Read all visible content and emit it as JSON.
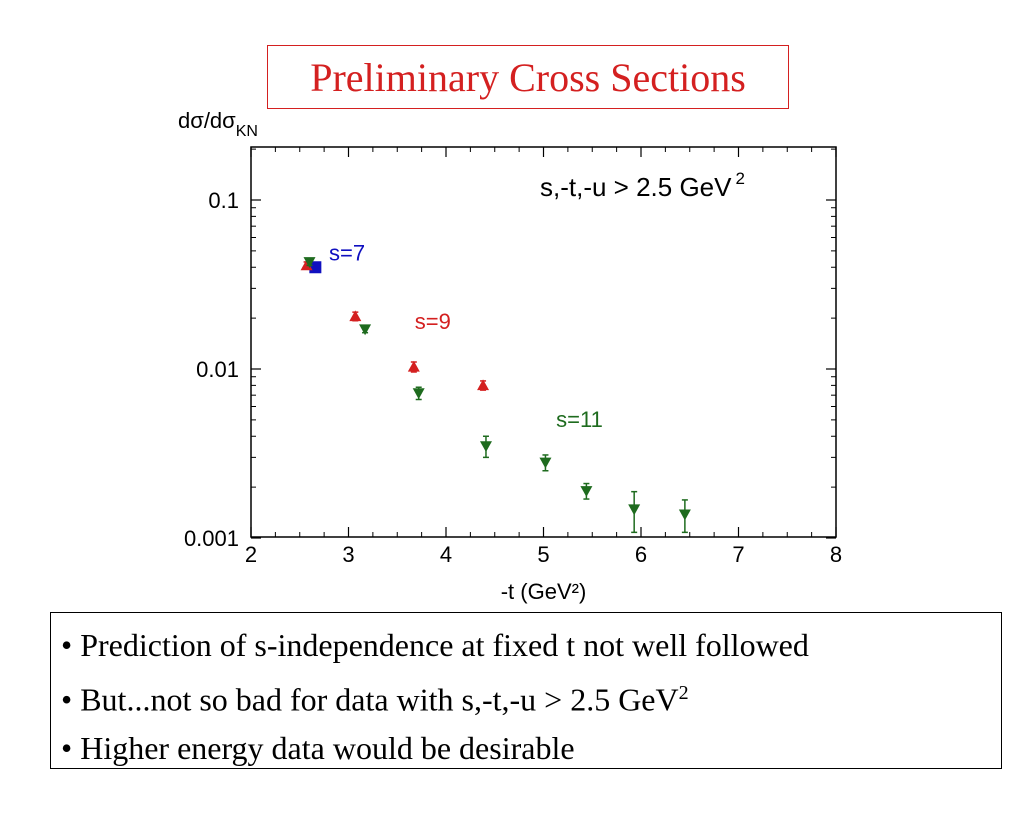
{
  "slide": {
    "title": "Preliminary Cross Sections",
    "title_color": "#d42020"
  },
  "chart_data": {
    "type": "scatter",
    "title": "Preliminary Cross Sections",
    "xlabel": "-t (GeV²)",
    "ylabel": "dσ/dσ_KN",
    "ylabel_main": "dσ/dσ",
    "ylabel_sub": "KN",
    "xlim": [
      2,
      8
    ],
    "ylim": [
      0.001,
      0.2
    ],
    "yscale": "log",
    "xticks": [
      2,
      3,
      4,
      5,
      6,
      7,
      8
    ],
    "xtick_labels": [
      "2",
      "3",
      "4",
      "5",
      "6",
      "7",
      "8"
    ],
    "yticks": [
      0.001,
      0.01,
      0.1
    ],
    "ytick_labels": [
      "0.001",
      "0.01",
      "0.1"
    ],
    "grid": false,
    "annotation": "s,-t,-u > 2.5 GeV",
    "annotation_sup": "2",
    "series": [
      {
        "name": "s=7",
        "color": "#1010c0",
        "marker": "square",
        "points": [
          {
            "x": 2.66,
            "y": 0.04,
            "err": 0.0015
          }
        ]
      },
      {
        "name": "s=9",
        "color": "#d42020",
        "marker": "triangle-up",
        "points": [
          {
            "x": 2.57,
            "y": 0.041,
            "err": 0.002
          },
          {
            "x": 3.07,
            "y": 0.0205,
            "err": 0.0012
          },
          {
            "x": 3.67,
            "y": 0.0103,
            "err": 0.0007
          },
          {
            "x": 4.38,
            "y": 0.008,
            "err": 0.0005
          }
        ]
      },
      {
        "name": "s=11",
        "color": "#1e6b1e",
        "marker": "triangle-down",
        "points": [
          {
            "x": 2.6,
            "y": 0.043,
            "err": 0.002
          },
          {
            "x": 3.17,
            "y": 0.0172,
            "err": 0.0008
          },
          {
            "x": 3.72,
            "y": 0.0072,
            "err": 0.0006
          },
          {
            "x": 4.41,
            "y": 0.0035,
            "err": 0.0005
          },
          {
            "x": 5.02,
            "y": 0.0028,
            "err": 0.0003
          },
          {
            "x": 5.44,
            "y": 0.0019,
            "err": 0.0002
          },
          {
            "x": 5.93,
            "y": 0.00148,
            "err": 0.0004
          },
          {
            "x": 6.45,
            "y": 0.00138,
            "err": 0.0003
          }
        ]
      }
    ],
    "series_labels": [
      {
        "text": "s=7",
        "color": "#1010c0",
        "x": 2.8,
        "y": 0.044
      },
      {
        "text": "s=9",
        "color": "#d42020",
        "x": 3.68,
        "y": 0.0173
      },
      {
        "text": "s=11",
        "color": "#1e6b1e",
        "x": 5.13,
        "y": 0.00455
      }
    ]
  },
  "bullets": {
    "line1": "• Prediction of s-independence at fixed t not well followed",
    "line2": "• But...not so bad for data with s,-t,-u > 2.5 GeV",
    "line2_sup": "2",
    "line3": "• Higher energy data would be desirable"
  }
}
